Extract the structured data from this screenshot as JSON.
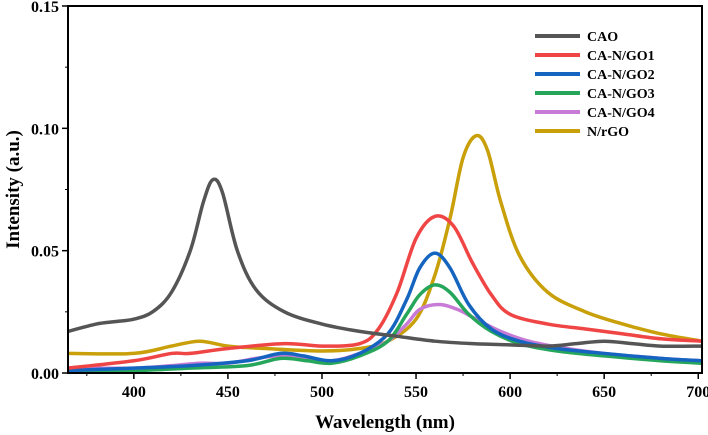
{
  "chart_data": {
    "type": "line",
    "title": "",
    "xlabel": "Wavelength (nm)",
    "ylabel": "Intensity (a.u.)",
    "xlim": [
      365,
      702
    ],
    "ylim": [
      0,
      0.15
    ],
    "xticks": [
      400,
      450,
      500,
      550,
      600,
      650,
      700
    ],
    "xtick_labels": [
      "400",
      "450",
      "500",
      "550",
      "600",
      "650",
      "700"
    ],
    "yticks": [
      0,
      0.05,
      0.1,
      0.15
    ],
    "ytick_labels": [
      "0.00",
      "0.05",
      "0.10",
      "0.15"
    ],
    "legend_position": "top-right",
    "grid": false,
    "series": [
      {
        "name": "CAO",
        "color": "#555555",
        "points": [
          [
            365,
            0.017
          ],
          [
            380,
            0.02
          ],
          [
            390,
            0.021
          ],
          [
            400,
            0.022
          ],
          [
            410,
            0.025
          ],
          [
            420,
            0.033
          ],
          [
            430,
            0.05
          ],
          [
            437,
            0.07
          ],
          [
            442,
            0.079
          ],
          [
            447,
            0.074
          ],
          [
            455,
            0.05
          ],
          [
            465,
            0.034
          ],
          [
            480,
            0.025
          ],
          [
            500,
            0.02
          ],
          [
            520,
            0.017
          ],
          [
            540,
            0.015
          ],
          [
            560,
            0.013
          ],
          [
            580,
            0.012
          ],
          [
            600,
            0.0115
          ],
          [
            620,
            0.011
          ],
          [
            635,
            0.012
          ],
          [
            650,
            0.013
          ],
          [
            665,
            0.012
          ],
          [
            680,
            0.011
          ],
          [
            702,
            0.011
          ]
        ]
      },
      {
        "name": "CA-N/GO1",
        "color": "#f04545",
        "points": [
          [
            365,
            0.002
          ],
          [
            400,
            0.005
          ],
          [
            420,
            0.008
          ],
          [
            430,
            0.008
          ],
          [
            450,
            0.01
          ],
          [
            480,
            0.012
          ],
          [
            500,
            0.011
          ],
          [
            520,
            0.012
          ],
          [
            530,
            0.018
          ],
          [
            540,
            0.033
          ],
          [
            550,
            0.055
          ],
          [
            560,
            0.064
          ],
          [
            570,
            0.06
          ],
          [
            580,
            0.045
          ],
          [
            590,
            0.032
          ],
          [
            600,
            0.024
          ],
          [
            620,
            0.02
          ],
          [
            640,
            0.018
          ],
          [
            660,
            0.016
          ],
          [
            680,
            0.014
          ],
          [
            702,
            0.013
          ]
        ]
      },
      {
        "name": "CA-N/GO2",
        "color": "#1565c0",
        "points": [
          [
            365,
            0.001
          ],
          [
            400,
            0.002
          ],
          [
            430,
            0.003
          ],
          [
            460,
            0.005
          ],
          [
            478,
            0.008
          ],
          [
            490,
            0.007
          ],
          [
            505,
            0.005
          ],
          [
            520,
            0.008
          ],
          [
            535,
            0.016
          ],
          [
            545,
            0.03
          ],
          [
            552,
            0.043
          ],
          [
            560,
            0.049
          ],
          [
            568,
            0.043
          ],
          [
            578,
            0.028
          ],
          [
            590,
            0.018
          ],
          [
            605,
            0.013
          ],
          [
            625,
            0.01
          ],
          [
            650,
            0.008
          ],
          [
            680,
            0.006
          ],
          [
            702,
            0.005
          ]
        ]
      },
      {
        "name": "CA-N/GO3",
        "color": "#26a65b",
        "points": [
          [
            365,
            0.001
          ],
          [
            400,
            0.001
          ],
          [
            430,
            0.002
          ],
          [
            460,
            0.003
          ],
          [
            478,
            0.006
          ],
          [
            492,
            0.005
          ],
          [
            505,
            0.004
          ],
          [
            520,
            0.007
          ],
          [
            535,
            0.013
          ],
          [
            545,
            0.024
          ],
          [
            552,
            0.032
          ],
          [
            560,
            0.036
          ],
          [
            568,
            0.033
          ],
          [
            578,
            0.024
          ],
          [
            590,
            0.017
          ],
          [
            605,
            0.012
          ],
          [
            625,
            0.009
          ],
          [
            650,
            0.007
          ],
          [
            680,
            0.005
          ],
          [
            702,
            0.004
          ]
        ]
      },
      {
        "name": "CA-N/GO4",
        "color": "#c77ad6",
        "points": [
          [
            365,
            0.002
          ],
          [
            400,
            0.002
          ],
          [
            420,
            0.003
          ],
          [
            435,
            0.004
          ],
          [
            450,
            0.004
          ],
          [
            465,
            0.006
          ],
          [
            478,
            0.007
          ],
          [
            490,
            0.006
          ],
          [
            505,
            0.005
          ],
          [
            520,
            0.008
          ],
          [
            535,
            0.013
          ],
          [
            545,
            0.02
          ],
          [
            552,
            0.026
          ],
          [
            562,
            0.028
          ],
          [
            572,
            0.026
          ],
          [
            582,
            0.022
          ],
          [
            595,
            0.017
          ],
          [
            610,
            0.013
          ],
          [
            630,
            0.01
          ],
          [
            650,
            0.008
          ],
          [
            680,
            0.006
          ],
          [
            702,
            0.005
          ]
        ]
      },
      {
        "name": "N/rGO",
        "color": "#c9a00a",
        "points": [
          [
            365,
            0.008
          ],
          [
            400,
            0.008
          ],
          [
            420,
            0.011
          ],
          [
            435,
            0.013
          ],
          [
            450,
            0.011
          ],
          [
            470,
            0.01
          ],
          [
            500,
            0.009
          ],
          [
            520,
            0.01
          ],
          [
            535,
            0.013
          ],
          [
            550,
            0.022
          ],
          [
            560,
            0.04
          ],
          [
            568,
            0.063
          ],
          [
            575,
            0.088
          ],
          [
            582,
            0.097
          ],
          [
            588,
            0.091
          ],
          [
            595,
            0.07
          ],
          [
            605,
            0.048
          ],
          [
            620,
            0.033
          ],
          [
            640,
            0.025
          ],
          [
            660,
            0.02
          ],
          [
            680,
            0.016
          ],
          [
            702,
            0.013
          ]
        ]
      }
    ]
  }
}
